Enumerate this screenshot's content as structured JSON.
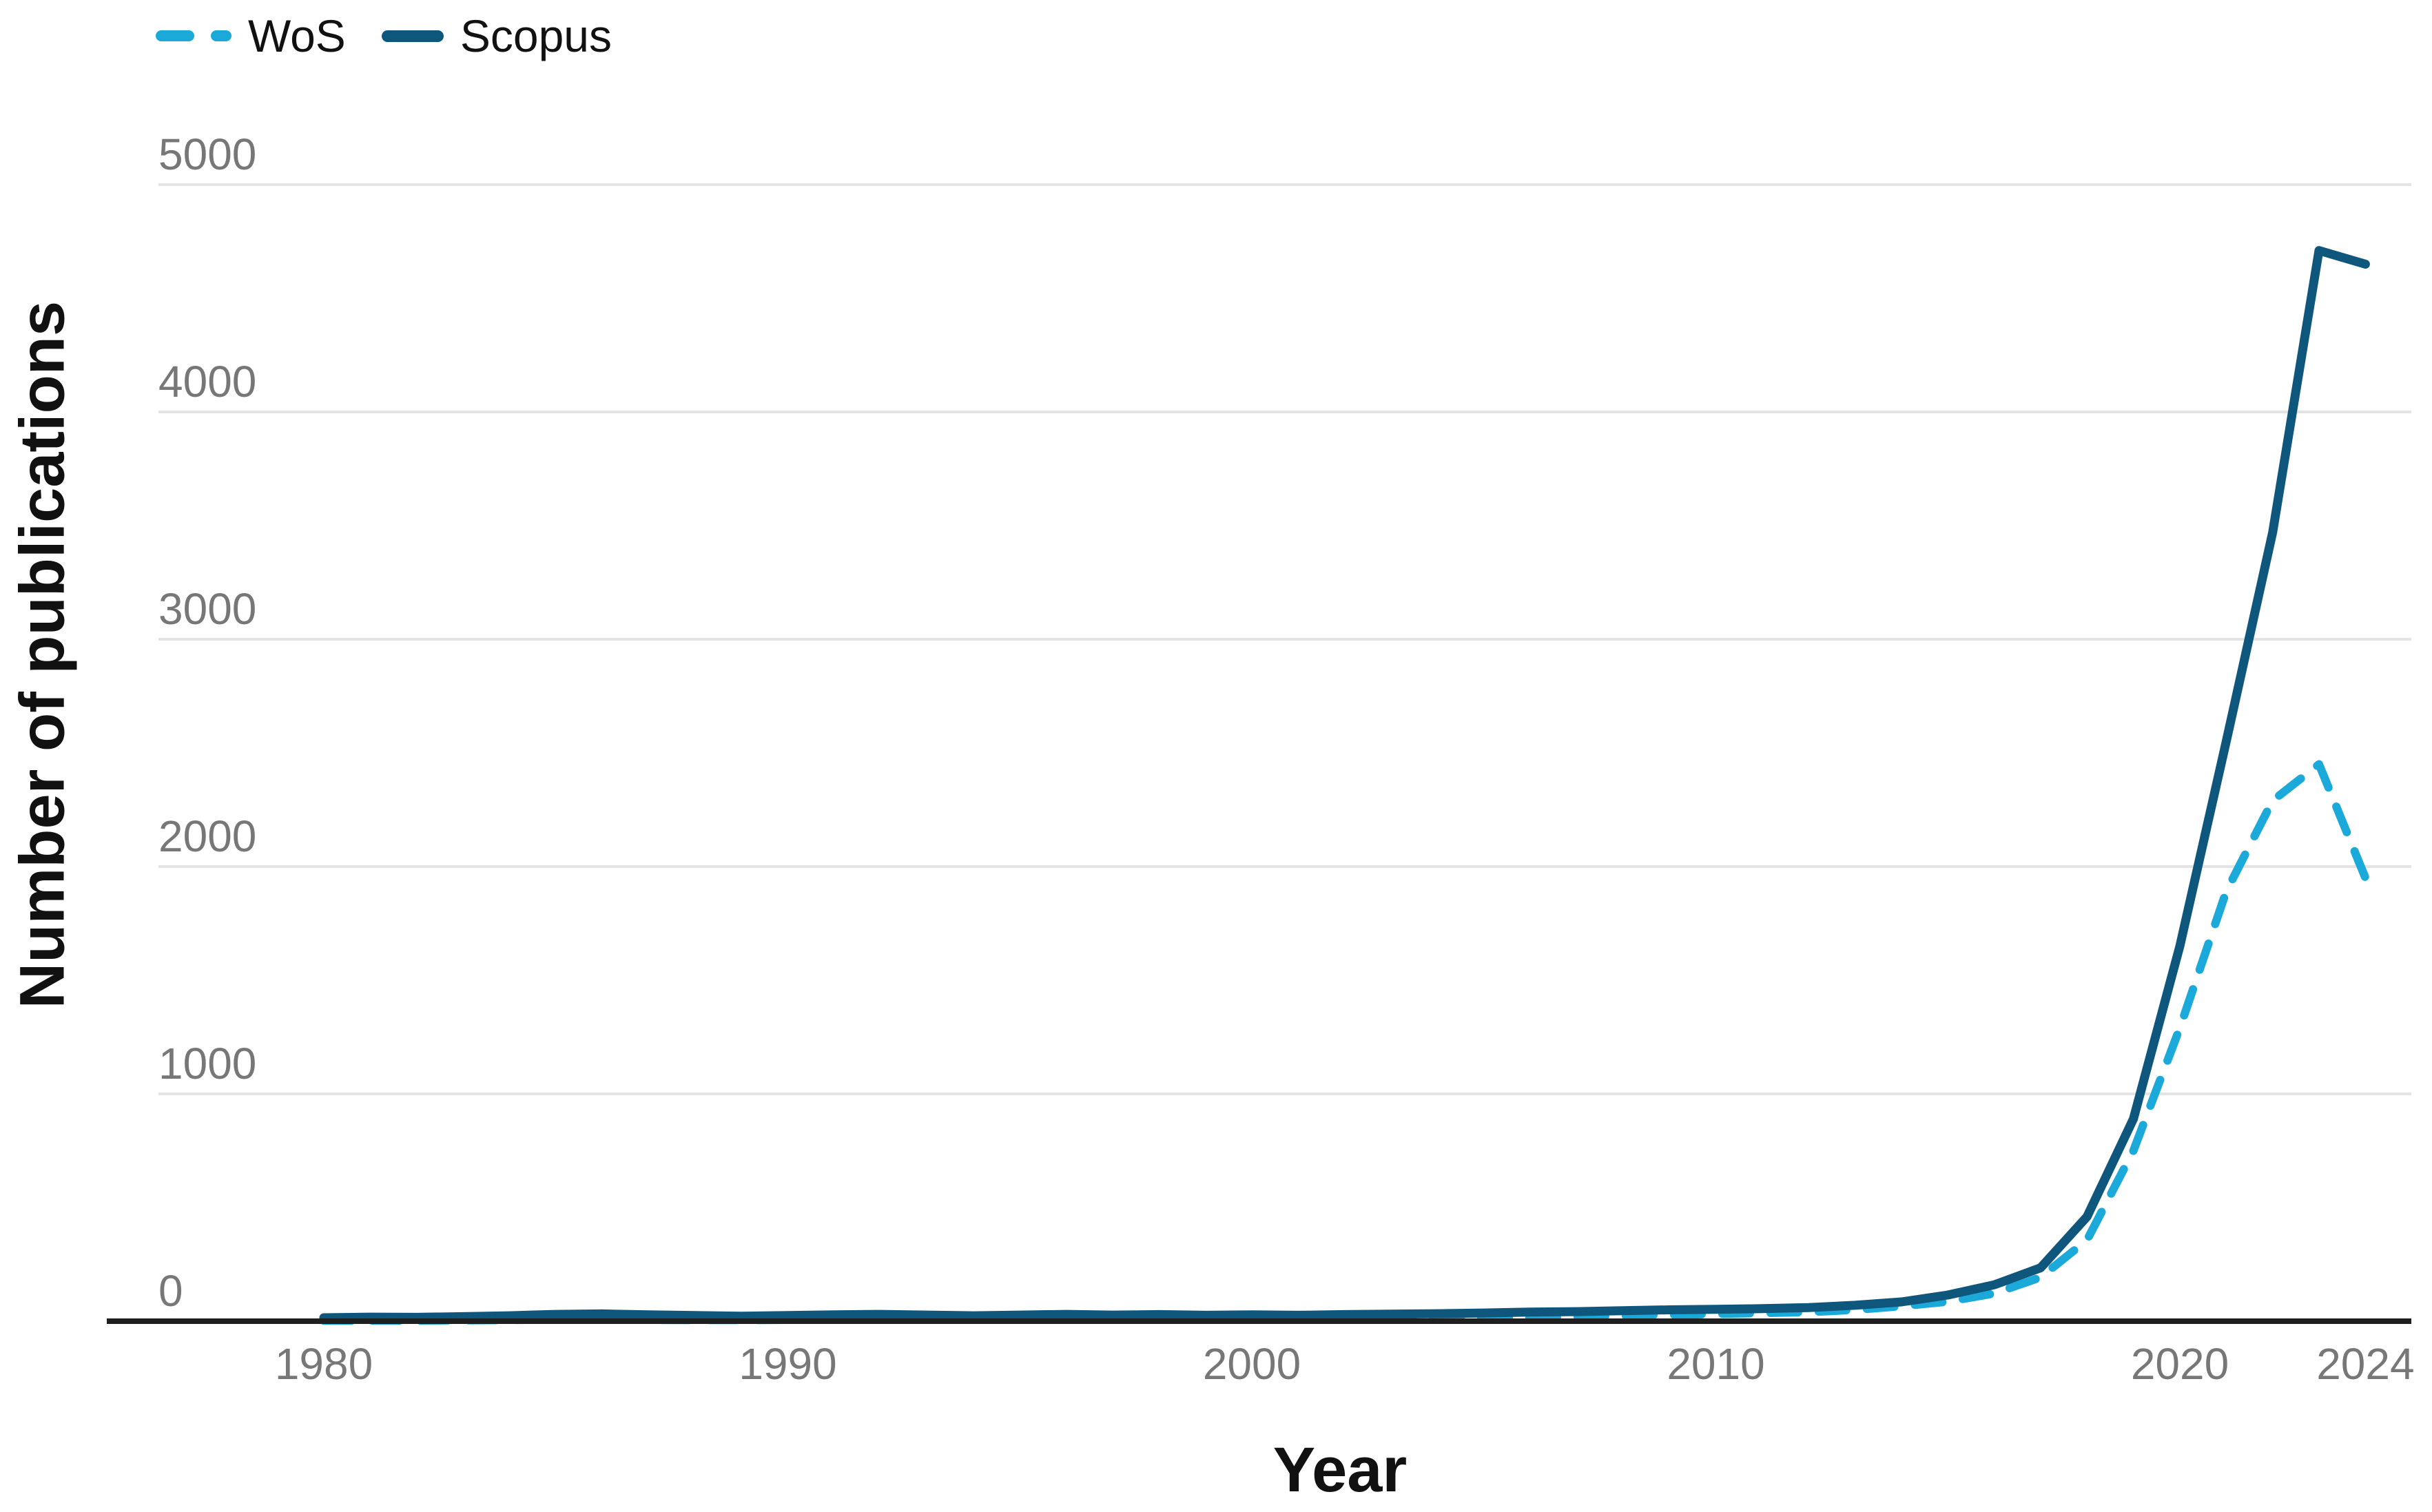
{
  "chart_data": {
    "type": "line",
    "title": "",
    "xlabel": "Year",
    "ylabel": "Number of publications",
    "x": [
      1980,
      1981,
      1982,
      1983,
      1984,
      1985,
      1986,
      1987,
      1988,
      1989,
      1990,
      1991,
      1992,
      1993,
      1994,
      1995,
      1996,
      1997,
      1998,
      1999,
      2000,
      2001,
      2002,
      2003,
      2004,
      2005,
      2006,
      2007,
      2008,
      2009,
      2010,
      2011,
      2012,
      2013,
      2014,
      2015,
      2016,
      2017,
      2018,
      2019,
      2020,
      2021,
      2022,
      2023,
      2024
    ],
    "series": [
      {
        "name": "WoS",
        "style": "dashed",
        "color": "#1ba9d9",
        "values": [
          2,
          3,
          3,
          4,
          5,
          8,
          8,
          6,
          5,
          5,
          6,
          8,
          9,
          8,
          6,
          8,
          9,
          8,
          9,
          8,
          8,
          8,
          9,
          10,
          12,
          14,
          17,
          20,
          24,
          28,
          32,
          36,
          40,
          50,
          66,
          86,
          122,
          193,
          357,
          750,
          1290,
          1890,
          2290,
          2450,
          1950
        ]
      },
      {
        "name": "Scopus",
        "style": "solid",
        "color": "#0e567c",
        "values": [
          15,
          18,
          17,
          20,
          24,
          30,
          32,
          28,
          25,
          22,
          25,
          28,
          30,
          27,
          24,
          27,
          30,
          27,
          29,
          26,
          28,
          26,
          29,
          31,
          33,
          36,
          40,
          42,
          46,
          50,
          52,
          55,
          60,
          70,
          85,
          115,
          160,
          235,
          460,
          890,
          1650,
          2550,
          3470,
          4710,
          4650
        ]
      }
    ],
    "xticks": [
      1980,
      1990,
      2000,
      2010,
      2020,
      2024
    ],
    "yticks": [
      0,
      1000,
      2000,
      3000,
      4000,
      5000
    ],
    "ylim": [
      0,
      5000
    ],
    "grid": "horizontal",
    "legend_position": "top-left",
    "colors": {
      "background": "#ffffff",
      "grid": "#e4e4e4",
      "axis": "#1f1f1f",
      "tick_text": "#777777",
      "title_text": "#111111"
    }
  }
}
